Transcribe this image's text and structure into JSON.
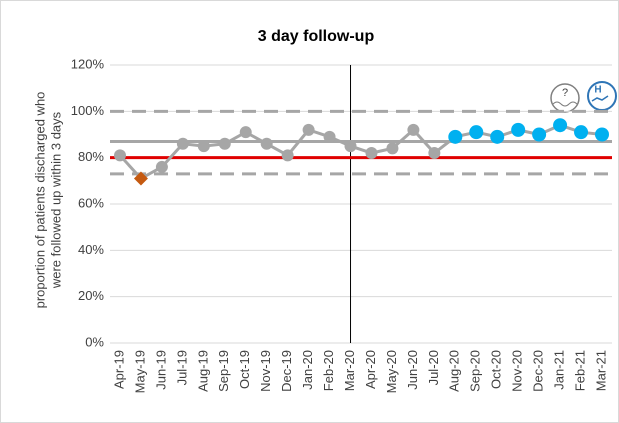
{
  "chart_data": {
    "type": "line",
    "title": "3 day follow-up",
    "y_label": [
      "proportion of patients discharged who",
      "were followed up within 3 days"
    ],
    "categories": [
      "Apr-19",
      "May-19",
      "Jun-19",
      "Jul-19",
      "Aug-19",
      "Sep-19",
      "Oct-19",
      "Nov-19",
      "Dec-19",
      "Jan-20",
      "Feb-20",
      "Mar-20",
      "Apr-20",
      "May-20",
      "Jun-20",
      "Jul-20",
      "Aug-20",
      "Sep-20",
      "Oct-20",
      "Nov-20",
      "Dec-20",
      "Jan-21",
      "Feb-21",
      "Mar-21"
    ],
    "series": [
      {
        "color": "#a6a6a6",
        "values": [
          81,
          71,
          76,
          86,
          85,
          86,
          91,
          86,
          81,
          92,
          89,
          85,
          82,
          84,
          92,
          82,
          89,
          91,
          89,
          92,
          90,
          94,
          91,
          90
        ],
        "point_colors": [
          "#a6a6a6",
          "#c55a11",
          "#a6a6a6",
          "#a6a6a6",
          "#a6a6a6",
          "#a6a6a6",
          "#a6a6a6",
          "#a6a6a6",
          "#a6a6a6",
          "#a6a6a6",
          "#a6a6a6",
          "#a6a6a6",
          "#a6a6a6",
          "#a6a6a6",
          "#a6a6a6",
          "#a6a6a6",
          "#00b0f0",
          "#00b0f0",
          "#00b0f0",
          "#00b0f0",
          "#00b0f0",
          "#00b0f0",
          "#00b0f0",
          "#00b0f0"
        ],
        "point_shapes": [
          "circle",
          "diamond",
          "circle",
          "circle",
          "circle",
          "circle",
          "circle",
          "circle",
          "circle",
          "circle",
          "circle",
          "circle",
          "circle",
          "circle",
          "circle",
          "circle",
          "circle",
          "circle",
          "circle",
          "circle",
          "circle",
          "circle",
          "circle",
          "circle"
        ]
      }
    ],
    "reference_lines": [
      {
        "value": 100,
        "color": "#a6a6a6",
        "style": "dashed"
      },
      {
        "value": 87,
        "color": "#a6a6a6",
        "style": "solid"
      },
      {
        "value": 80,
        "color": "#e00000",
        "style": "solid"
      },
      {
        "value": 73,
        "color": "#a6a6a6",
        "style": "dashed"
      }
    ],
    "divider_index": 11,
    "ylim": [
      0,
      120
    ],
    "yticks": [
      {
        "value": 0,
        "label": "0%"
      },
      {
        "value": 20,
        "label": "20%"
      },
      {
        "value": 40,
        "label": "40%"
      },
      {
        "value": 60,
        "label": "60%"
      },
      {
        "value": 80,
        "label": "80%"
      },
      {
        "value": 100,
        "label": "100%"
      },
      {
        "value": 120,
        "label": "120%"
      }
    ],
    "grid": true,
    "icons": [
      "?",
      "H"
    ]
  }
}
